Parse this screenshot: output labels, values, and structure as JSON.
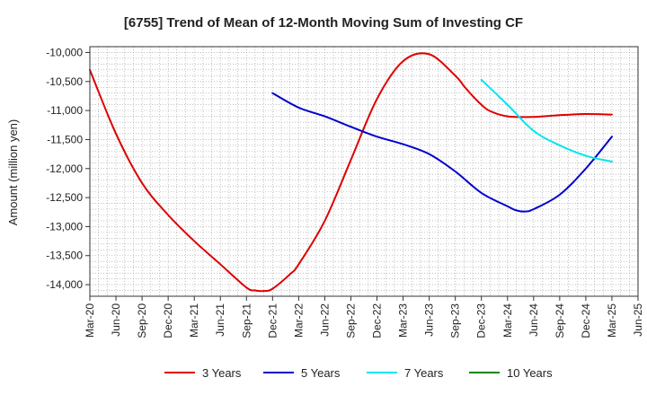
{
  "chart_data": {
    "type": "line",
    "title": "[6755]  Trend of Mean of 12-Month Moving Sum of Investing CF",
    "ylabel": "Amount (million yen)",
    "xlabel": "",
    "ylim": [
      -14200,
      -9900
    ],
    "yticks": [
      -10000,
      -10500,
      -11000,
      -11500,
      -12000,
      -12500,
      -13000,
      -13500,
      -14000
    ],
    "ytick_labels": [
      "-10,000",
      "-10,500",
      "-11,000",
      "-11,500",
      "-12,000",
      "-12,500",
      "-13,000",
      "-13,500",
      "-14,000"
    ],
    "x_start": "Mar-20",
    "x_tick_labels": [
      "Mar-20",
      "Jun-20",
      "Sep-20",
      "Dec-20",
      "Mar-21",
      "Jun-21",
      "Sep-21",
      "Dec-21",
      "Mar-22",
      "Jun-22",
      "Sep-22",
      "Dec-22",
      "Mar-23",
      "Jun-23",
      "Sep-23",
      "Dec-23",
      "Mar-24",
      "Jun-24",
      "Sep-24",
      "Dec-24",
      "Mar-25",
      "Jun-25"
    ],
    "grid": true,
    "legend_position": "bottom",
    "series": [
      {
        "name": "3 Years",
        "color": "#dd0000",
        "x_month_offset": [
          0,
          3,
          6,
          9,
          12,
          15,
          18,
          19,
          20,
          21,
          23,
          24,
          27,
          30,
          33,
          36,
          39,
          42,
          43,
          44,
          45,
          46,
          48,
          51,
          54,
          57,
          60
        ],
        "values": [
          -10300,
          -11400,
          -12250,
          -12800,
          -13250,
          -13650,
          -14050,
          -14100,
          -14110,
          -14070,
          -13820,
          -13650,
          -12900,
          -11850,
          -10800,
          -10150,
          -10030,
          -10400,
          -10580,
          -10750,
          -10900,
          -11010,
          -11100,
          -11110,
          -11080,
          -11060,
          -11070
        ]
      },
      {
        "name": "5 Years",
        "color": "#0000cc",
        "x_month_offset": [
          21,
          24,
          27,
          30,
          33,
          36,
          39,
          42,
          45,
          48,
          49,
          50,
          51,
          54,
          57,
          60
        ],
        "values": [
          -10700,
          -10950,
          -11100,
          -11280,
          -11450,
          -11580,
          -11750,
          -12050,
          -12420,
          -12650,
          -12720,
          -12740,
          -12700,
          -12450,
          -12000,
          -11450
        ]
      },
      {
        "name": "7 Years",
        "color": "#00e5ee",
        "x_month_offset": [
          45,
          48,
          51,
          54,
          57,
          60
        ],
        "values": [
          -10470,
          -10900,
          -11350,
          -11600,
          -11780,
          -11880
        ]
      },
      {
        "name": "10 Years",
        "color": "#008800",
        "x_month_offset": [],
        "values": []
      }
    ]
  }
}
